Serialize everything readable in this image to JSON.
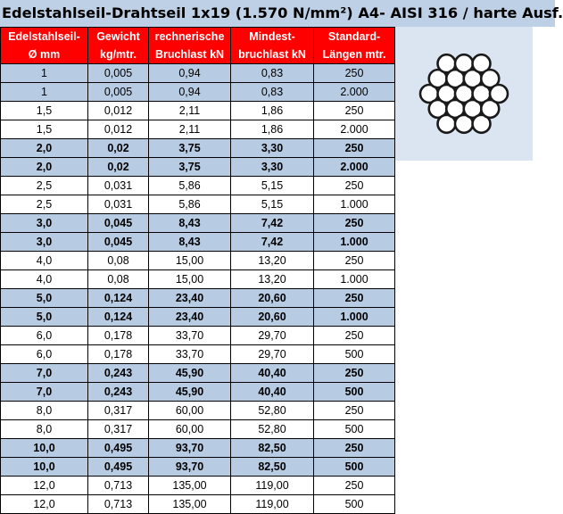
{
  "title": "Edelstahlseil-Drahtseil 1x19 (1.570 N/mm²) A4- AISI 316 / harte Ausf.",
  "header": {
    "row1": [
      "Edelstahlseil-",
      "Gewicht",
      "rechnerische",
      "Mindest-",
      "Standard-"
    ],
    "row2": [
      "Ø mm",
      "kg/mtr.",
      "Bruchlast kN",
      "bruchlast kN",
      "Längen mtr."
    ]
  },
  "rows": [
    {
      "cells": [
        "1",
        "0,005",
        "0,94",
        "0,83",
        "250"
      ],
      "style": "blue"
    },
    {
      "cells": [
        "1",
        "0,005",
        "0,94",
        "0,83",
        "2.000"
      ],
      "style": "blue"
    },
    {
      "cells": [
        "1,5",
        "0,012",
        "2,11",
        "1,86",
        "250"
      ],
      "style": "white"
    },
    {
      "cells": [
        "1,5",
        "0,012",
        "2,11",
        "1,86",
        "2.000"
      ],
      "style": "white"
    },
    {
      "cells": [
        "2,0",
        "0,02",
        "3,75",
        "3,30",
        "250"
      ],
      "style": "blue bold"
    },
    {
      "cells": [
        "2,0",
        "0,02",
        "3,75",
        "3,30",
        "2.000"
      ],
      "style": "blue bold"
    },
    {
      "cells": [
        "2,5",
        "0,031",
        "5,86",
        "5,15",
        "250"
      ],
      "style": "white"
    },
    {
      "cells": [
        "2,5",
        "0,031",
        "5,86",
        "5,15",
        "1.000"
      ],
      "style": "white"
    },
    {
      "cells": [
        "3,0",
        "0,045",
        "8,43",
        "7,42",
        "250"
      ],
      "style": "blue bold"
    },
    {
      "cells": [
        "3,0",
        "0,045",
        "8,43",
        "7,42",
        "1.000"
      ],
      "style": "blue bold"
    },
    {
      "cells": [
        "4,0",
        "0,08",
        "15,00",
        "13,20",
        "250"
      ],
      "style": "white"
    },
    {
      "cells": [
        "4,0",
        "0,08",
        "15,00",
        "13,20",
        "1.000"
      ],
      "style": "white"
    },
    {
      "cells": [
        "5,0",
        "0,124",
        "23,40",
        "20,60",
        "250"
      ],
      "style": "blue bold"
    },
    {
      "cells": [
        "5,0",
        "0,124",
        "23,40",
        "20,60",
        "1.000"
      ],
      "style": "blue bold"
    },
    {
      "cells": [
        "6,0",
        "0,178",
        "33,70",
        "29,70",
        "250"
      ],
      "style": "white"
    },
    {
      "cells": [
        "6,0",
        "0,178",
        "33,70",
        "29,70",
        "500"
      ],
      "style": "white"
    },
    {
      "cells": [
        "7,0",
        "0,243",
        "45,90",
        "40,40",
        "250"
      ],
      "style": "blue bold"
    },
    {
      "cells": [
        "7,0",
        "0,243",
        "45,90",
        "40,40",
        "500"
      ],
      "style": "blue bold"
    },
    {
      "cells": [
        "8,0",
        "0,317",
        "60,00",
        "52,80",
        "250"
      ],
      "style": "white"
    },
    {
      "cells": [
        "8,0",
        "0,317",
        "60,00",
        "52,80",
        "500"
      ],
      "style": "white"
    },
    {
      "cells": [
        "10,0",
        "0,495",
        "93,70",
        "82,50",
        "250"
      ],
      "style": "blue bold"
    },
    {
      "cells": [
        "10,0",
        "0,495",
        "93,70",
        "82,50",
        "500"
      ],
      "style": "blue bold"
    },
    {
      "cells": [
        "12,0",
        "0,713",
        "135,00",
        "119,00",
        "250"
      ],
      "style": "white"
    },
    {
      "cells": [
        "12,0",
        "0,713",
        "135,00",
        "119,00",
        "500"
      ],
      "style": "white"
    }
  ],
  "colors": {
    "header_bg": "#ff0000",
    "header_text": "#ffffff",
    "band_blue": "#b7cbe3",
    "title_bg": "#bdd0e6",
    "diagram_bg": "#dbe5f1"
  },
  "diagram": {
    "icon": "wire-rope-1x19-cross-section-icon",
    "wire_count": 19
  }
}
